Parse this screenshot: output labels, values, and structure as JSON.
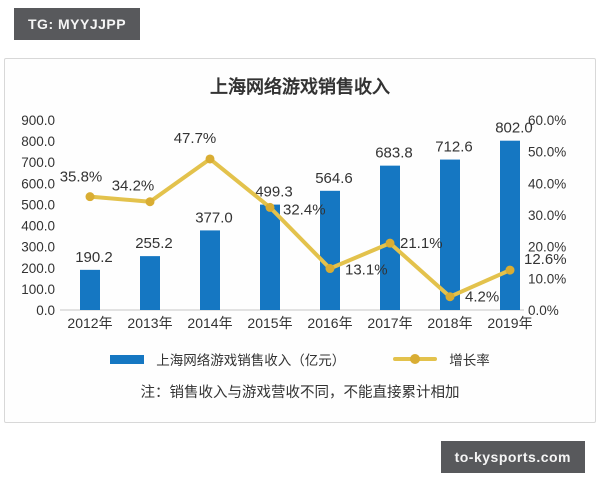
{
  "badges": {
    "top_left": "TG: MYYJJPP",
    "bottom_right": "to-kysports.com"
  },
  "chart_data": {
    "type": "bar+line",
    "title": "上海网络游戏销售收入",
    "categories": [
      "2012年",
      "2013年",
      "2014年",
      "2015年",
      "2016年",
      "2017年",
      "2018年",
      "2019年"
    ],
    "series": [
      {
        "name": "上海网络游戏销售收入（亿元）",
        "type": "bar",
        "axis": "left",
        "color": "#1577c2",
        "values": [
          190.2,
          255.2,
          377.0,
          499.3,
          564.6,
          683.8,
          712.6,
          802.0
        ]
      },
      {
        "name": "增长率",
        "type": "line",
        "axis": "right",
        "color": "#e3c24c",
        "marker_color": "#d9ad33",
        "unit": "%",
        "values": [
          35.8,
          34.2,
          47.7,
          32.4,
          13.1,
          21.1,
          4.2,
          12.6
        ]
      }
    ],
    "left_axis": {
      "min": 0,
      "max": 900,
      "step": 100,
      "tick_labels": [
        "0.0",
        "100.0",
        "200.0",
        "300.0",
        "400.0",
        "500.0",
        "600.0",
        "700.0",
        "800.0",
        "900.0"
      ]
    },
    "right_axis": {
      "min": 0,
      "max": 60,
      "step": 10,
      "tick_labels": [
        "0.0%",
        "10.0%",
        "20.0%",
        "30.0%",
        "40.0%",
        "50.0%",
        "60.0%"
      ]
    },
    "grid": false,
    "legend_position": "bottom",
    "note": "注：销售收入与游戏营收不同，不能直接累计相加",
    "text_color": "#333333",
    "axis_line_color": "#d9d9d9"
  }
}
